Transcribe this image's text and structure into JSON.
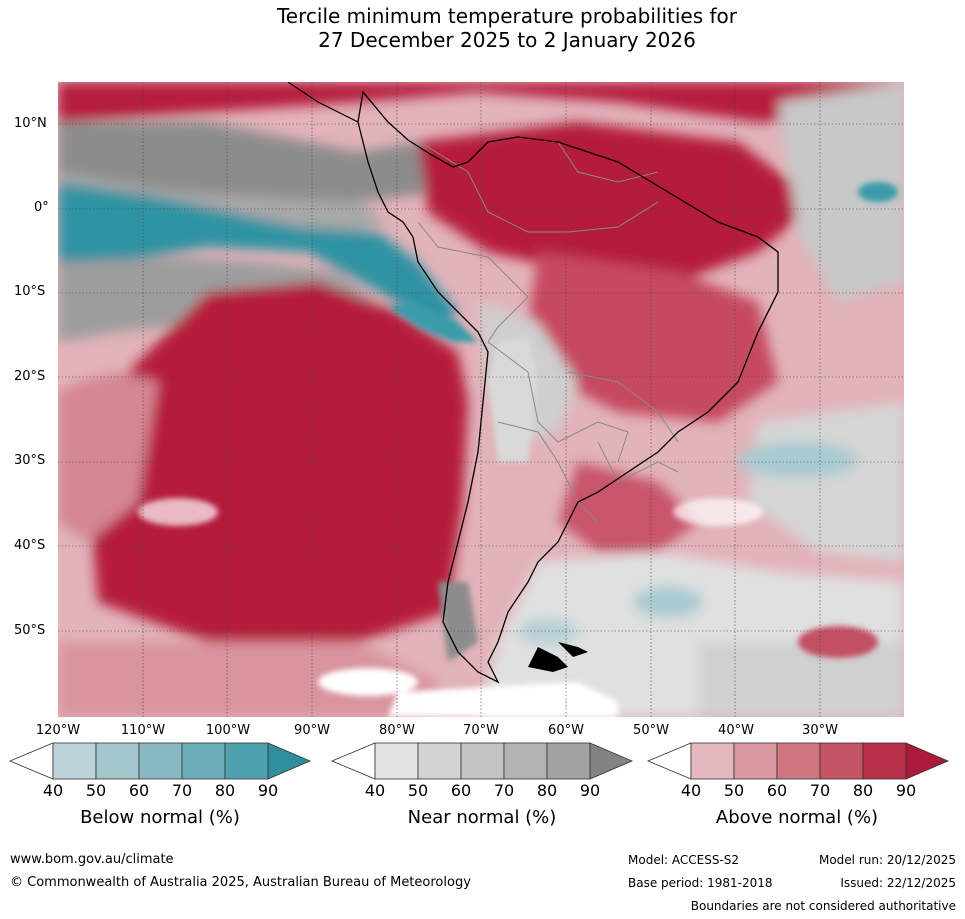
{
  "title": {
    "line1": "Tercile minimum temperature probabilities for",
    "line2": "27 December 2025 to 2 January 2026"
  },
  "map": {
    "region": "South America and surrounding oceans",
    "latitude_labels": [
      "10°N",
      "0°",
      "10°S",
      "20°S",
      "30°S",
      "40°S",
      "50°S"
    ],
    "longitude_labels": [
      "120°W",
      "110°W",
      "100°W",
      "90°W",
      "80°W",
      "70°W",
      "60°W",
      "50°W",
      "40°W",
      "30°W"
    ]
  },
  "colorbars": [
    {
      "label": "Below normal (%)",
      "ticks": [
        "40",
        "50",
        "60",
        "70",
        "80",
        "90"
      ],
      "colors": [
        "#ffffff",
        "#bcd3d9",
        "#a3c7cd",
        "#88b9c2",
        "#6badb8",
        "#4ea1ae",
        "#2e8e9e"
      ]
    },
    {
      "label": "Near normal (%)",
      "ticks": [
        "40",
        "50",
        "60",
        "70",
        "80",
        "90"
      ],
      "colors": [
        "#ffffff",
        "#e3e3e3",
        "#d3d3d3",
        "#c3c3c3",
        "#b3b3b3",
        "#a3a3a3",
        "#838383"
      ]
    },
    {
      "label": "Above normal (%)",
      "ticks": [
        "40",
        "50",
        "60",
        "70",
        "80",
        "90"
      ],
      "colors": [
        "#ffffff",
        "#e3b9bf",
        "#d9979f",
        "#cf7680",
        "#c45565",
        "#b83047",
        "#ab1a3a"
      ]
    }
  ],
  "footer": {
    "website": "www.bom.gov.au/climate",
    "copyright": "© Commonwealth of Australia 2025, Australian Bureau of Meteorology",
    "model": "Model: ACCESS-S2",
    "base_period": "Base period: 1981-2018",
    "model_run": "Model run: 20/12/2025",
    "issued": "Issued: 22/12/2025",
    "disclaimer": "Boundaries are not considered authoritative"
  }
}
